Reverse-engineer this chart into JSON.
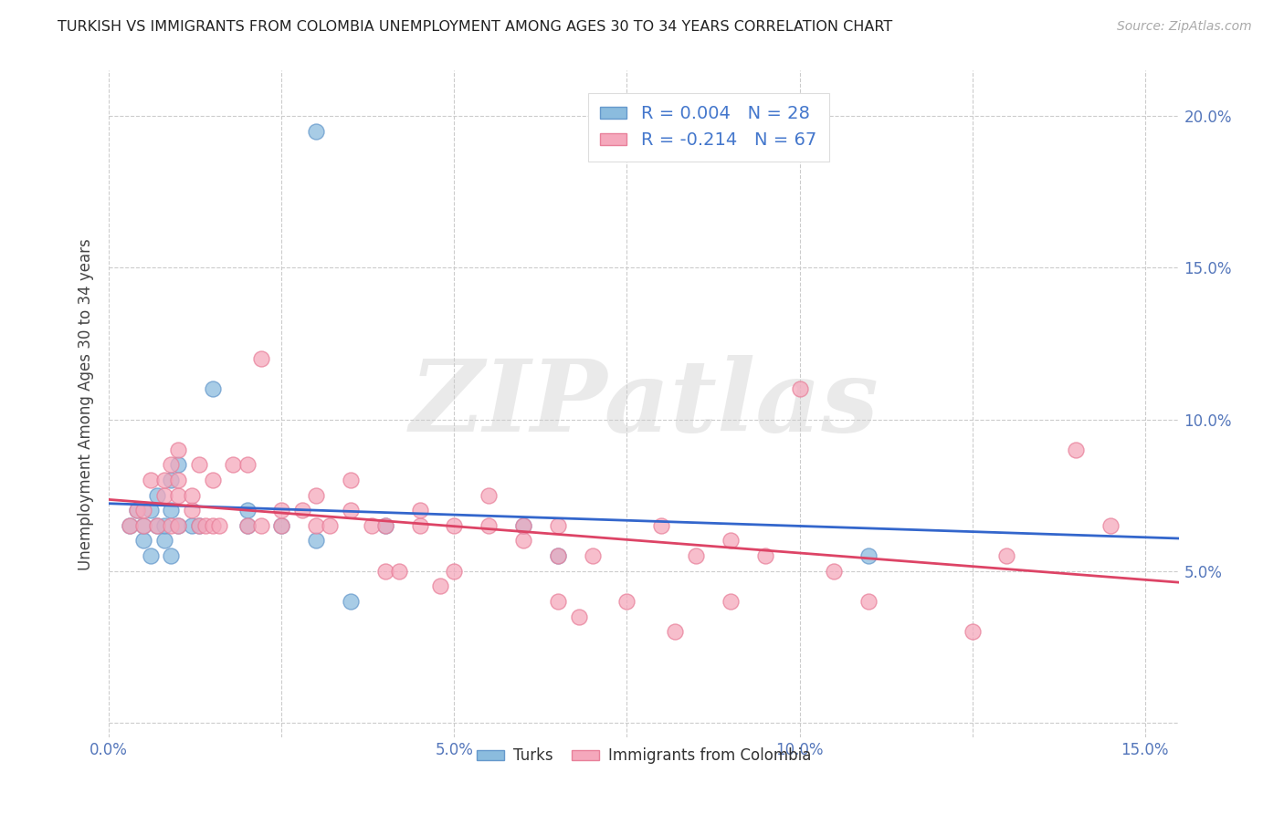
{
  "title": "TURKISH VS IMMIGRANTS FROM COLOMBIA UNEMPLOYMENT AMONG AGES 30 TO 34 YEARS CORRELATION CHART",
  "source": "Source: ZipAtlas.com",
  "ylabel": "Unemployment Among Ages 30 to 34 years",
  "xlim": [
    0.0,
    0.155
  ],
  "ylim": [
    -0.005,
    0.215
  ],
  "xticks": [
    0.0,
    0.025,
    0.05,
    0.075,
    0.1,
    0.125,
    0.15
  ],
  "xtick_labels": [
    "0.0%",
    "",
    "5.0%",
    "",
    "10.0%",
    "",
    "15.0%"
  ],
  "yticks": [
    0.0,
    0.05,
    0.1,
    0.15,
    0.2
  ],
  "ytick_labels_right": [
    "",
    "5.0%",
    "10.0%",
    "15.0%",
    "20.0%"
  ],
  "grid_color": "#cccccc",
  "background_color": "#ffffff",
  "turks_color": "#8bbcde",
  "colombia_color": "#f5a8bc",
  "turks_edge_color": "#6699cc",
  "colombia_edge_color": "#e8809a",
  "turks_line_color": "#3366cc",
  "colombia_line_color": "#dd4466",
  "legend_R_turks": "R = 0.004",
  "legend_N_turks": "N = 28",
  "legend_R_colombia": "R = -0.214",
  "legend_N_colombia": "N = 67",
  "watermark": "ZIPatlas",
  "legend_text_color": "#4477cc",
  "tick_color": "#5577bb",
  "turks_x": [
    0.003,
    0.004,
    0.005,
    0.005,
    0.006,
    0.006,
    0.007,
    0.007,
    0.008,
    0.008,
    0.009,
    0.009,
    0.009,
    0.01,
    0.01,
    0.012,
    0.013,
    0.015,
    0.02,
    0.02,
    0.025,
    0.03,
    0.035,
    0.04,
    0.06,
    0.065,
    0.11,
    0.03
  ],
  "turks_y": [
    0.065,
    0.07,
    0.06,
    0.065,
    0.055,
    0.07,
    0.065,
    0.075,
    0.06,
    0.065,
    0.055,
    0.07,
    0.08,
    0.065,
    0.085,
    0.065,
    0.065,
    0.11,
    0.065,
    0.07,
    0.065,
    0.06,
    0.04,
    0.065,
    0.065,
    0.055,
    0.055,
    0.195
  ],
  "colombia_x": [
    0.003,
    0.004,
    0.005,
    0.005,
    0.006,
    0.007,
    0.008,
    0.008,
    0.009,
    0.009,
    0.01,
    0.01,
    0.01,
    0.01,
    0.012,
    0.012,
    0.013,
    0.013,
    0.014,
    0.015,
    0.015,
    0.016,
    0.018,
    0.02,
    0.02,
    0.022,
    0.022,
    0.025,
    0.025,
    0.028,
    0.03,
    0.03,
    0.032,
    0.035,
    0.035,
    0.038,
    0.04,
    0.04,
    0.042,
    0.045,
    0.045,
    0.048,
    0.05,
    0.05,
    0.055,
    0.055,
    0.06,
    0.06,
    0.065,
    0.065,
    0.065,
    0.068,
    0.07,
    0.075,
    0.08,
    0.082,
    0.085,
    0.09,
    0.09,
    0.095,
    0.1,
    0.105,
    0.11,
    0.125,
    0.13,
    0.14,
    0.145
  ],
  "colombia_y": [
    0.065,
    0.07,
    0.065,
    0.07,
    0.08,
    0.065,
    0.075,
    0.08,
    0.065,
    0.085,
    0.065,
    0.075,
    0.08,
    0.09,
    0.07,
    0.075,
    0.065,
    0.085,
    0.065,
    0.065,
    0.08,
    0.065,
    0.085,
    0.065,
    0.085,
    0.12,
    0.065,
    0.065,
    0.07,
    0.07,
    0.065,
    0.075,
    0.065,
    0.07,
    0.08,
    0.065,
    0.05,
    0.065,
    0.05,
    0.065,
    0.07,
    0.045,
    0.05,
    0.065,
    0.065,
    0.075,
    0.06,
    0.065,
    0.04,
    0.055,
    0.065,
    0.035,
    0.055,
    0.04,
    0.065,
    0.03,
    0.055,
    0.04,
    0.06,
    0.055,
    0.11,
    0.05,
    0.04,
    0.03,
    0.055,
    0.09,
    0.065
  ]
}
